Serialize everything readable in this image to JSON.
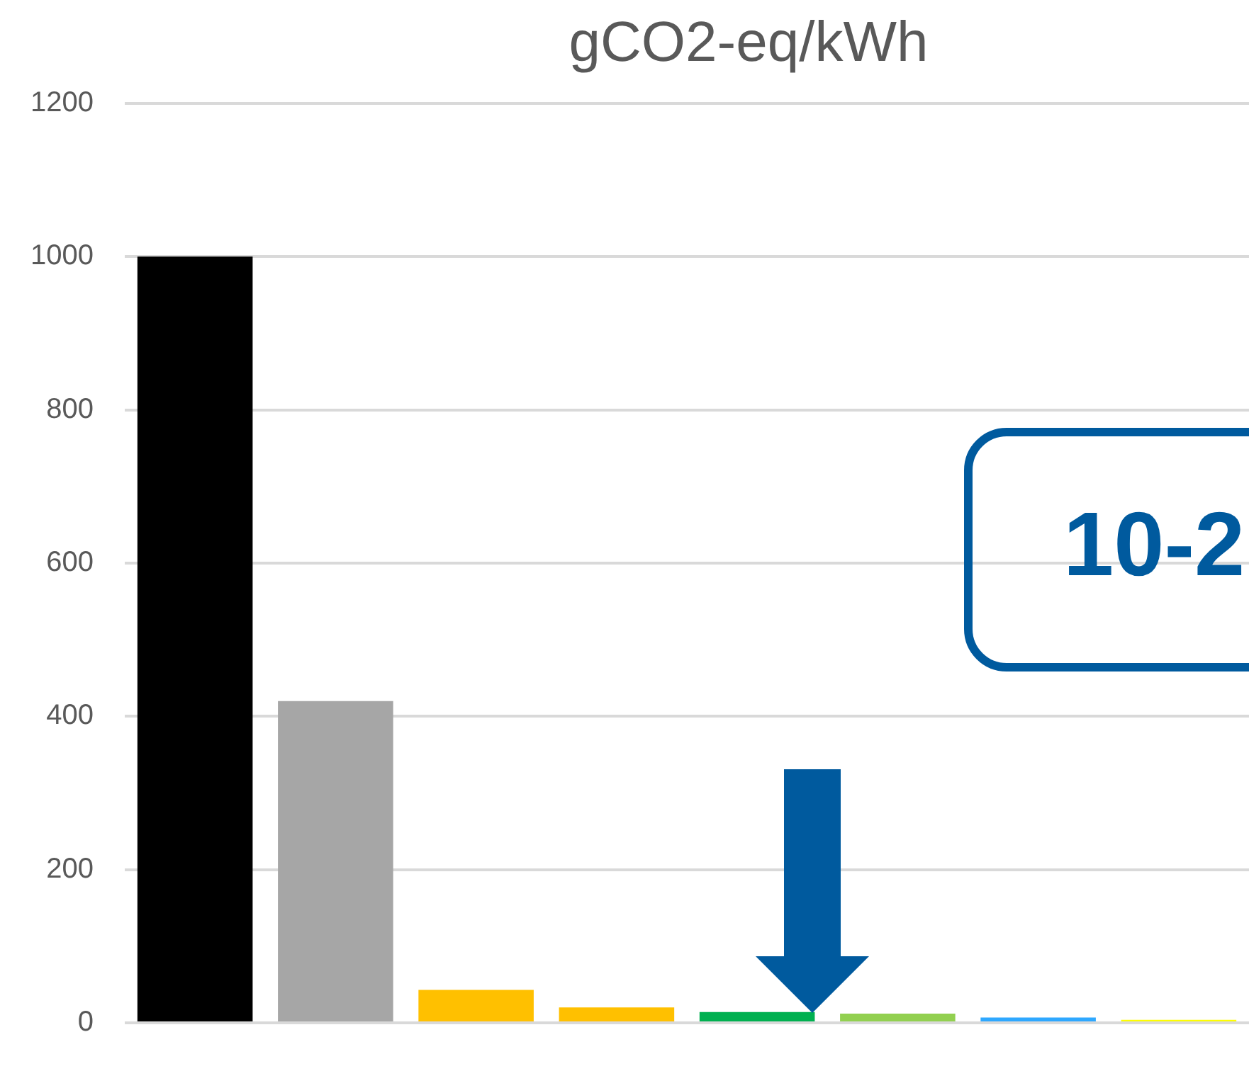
{
  "chart_data": {
    "type": "bar",
    "title": "gCO2-eq/kWh",
    "categories": [
      null,
      null,
      null,
      null,
      null,
      null,
      null,
      null
    ],
    "values": [
      1000,
      420,
      43,
      20,
      14,
      12,
      7,
      4
    ],
    "colors": [
      "#000000",
      "#a6a6a6",
      "#ffc000",
      "#ffc000",
      "#00b050",
      "#92d050",
      "#2ea8ff",
      "#ffff00"
    ],
    "ylim": [
      0,
      1200
    ],
    "yticks": [
      0,
      200,
      400,
      600,
      800,
      1000,
      1200
    ],
    "grid": "y",
    "legend": false,
    "annotations": [
      "10-2"
    ]
  }
}
